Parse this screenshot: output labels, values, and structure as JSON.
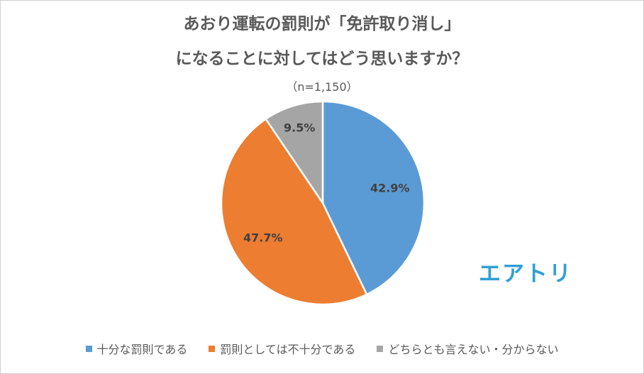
{
  "chart_data": {
    "type": "pie",
    "title_line1": "あおり運転の罰則が「免許取り消し」",
    "title_line2": "になることに対してはどう思いますか？",
    "subtitle": "（n=1,150）",
    "categories": [
      "十分な罰則である",
      "罰則としては不十分である",
      "どちらとも言えない・分からない"
    ],
    "values": [
      42.9,
      47.7,
      9.5
    ],
    "data_labels": [
      "42.9%",
      "47.7%",
      "9.5%"
    ],
    "colors": [
      "#5b9bd5",
      "#ed7d31",
      "#a5a5a5"
    ],
    "legend_position": "bottom"
  },
  "logo_text": "エアトリ"
}
